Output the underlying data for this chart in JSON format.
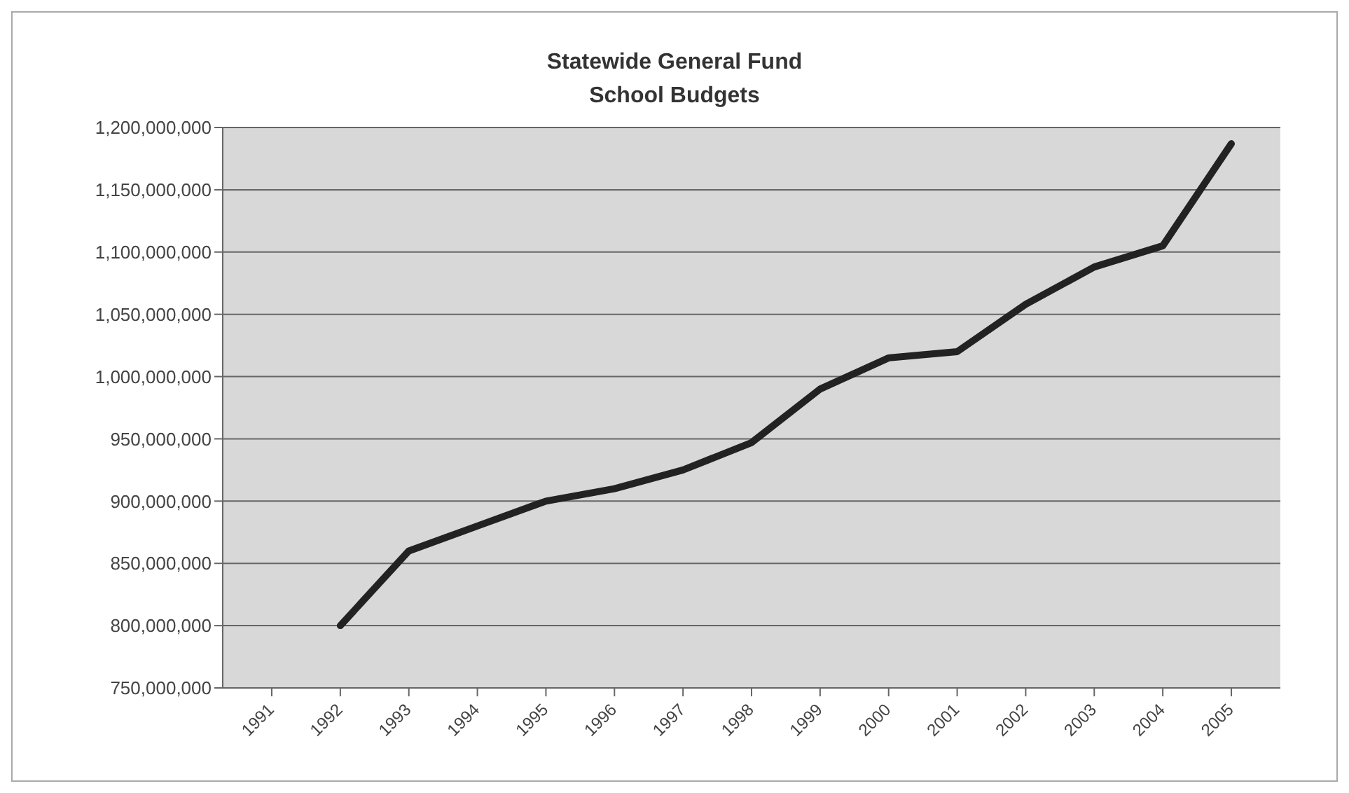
{
  "chart_data": {
    "type": "line",
    "title": "Statewide General Fund School Budgets",
    "categories": [
      "1991",
      "1992",
      "1993",
      "1994",
      "1995",
      "1996",
      "1997",
      "1998",
      "1999",
      "2000",
      "2001",
      "2002",
      "2003",
      "2004",
      "2005"
    ],
    "series": [
      {
        "color": "#222222",
        "values": [
          null,
          800000000,
          860000000,
          880000000,
          900000000,
          910000000,
          925000000,
          947000000,
          990000000,
          1015000000,
          1020000000,
          1058000000,
          1088000000,
          1105000000,
          1187000000
        ]
      }
    ],
    "ylim": [
      750000000,
      1200000000
    ],
    "yticks": [
      {
        "value": 750000000,
        "label": "750,000,000"
      },
      {
        "value": 800000000,
        "label": "800,000,000"
      },
      {
        "value": 850000000,
        "label": "850,000,000"
      },
      {
        "value": 900000000,
        "label": "900,000,000"
      },
      {
        "value": 950000000,
        "label": "950,000,000"
      },
      {
        "value": 1000000000,
        "label": "1,000,000,000"
      },
      {
        "value": 1050000000,
        "label": "1,050,000,000"
      },
      {
        "value": 1100000000,
        "label": "1,100,000,000"
      },
      {
        "value": 1150000000,
        "label": "1,150,000,000"
      },
      {
        "value": 1200000000,
        "label": "1,200,000,000"
      }
    ],
    "grid": "y",
    "legend": false,
    "marker": "none",
    "line_style": "solid"
  }
}
